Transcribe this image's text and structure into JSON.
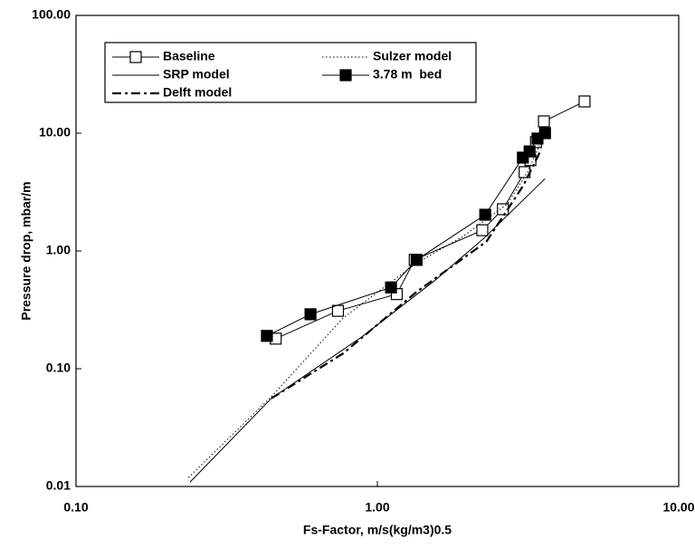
{
  "chart_data": {
    "type": "line",
    "x_label": "Fs-Factor, m/s(kg/m3)0.5",
    "y_label": "Pressure drop, mbar/m",
    "xscale": "log",
    "yscale": "log",
    "xlim": [
      0.1,
      10
    ],
    "ylim": [
      0.01,
      100
    ],
    "xticks": [
      {
        "value": 0.1,
        "label": "0.10"
      },
      {
        "value": 1,
        "label": "1.00"
      },
      {
        "value": 10,
        "label": "10.00"
      }
    ],
    "yticks": [
      {
        "value": 0.01,
        "label": "0.01"
      },
      {
        "value": 0.1,
        "label": "0.10"
      },
      {
        "value": 1,
        "label": "1.00"
      },
      {
        "value": 10,
        "label": "10.00"
      },
      {
        "value": 100,
        "label": "100.00"
      }
    ],
    "legend": "top-left",
    "series": [
      {
        "name": "Baseline",
        "color": "#000000",
        "line": "solid",
        "marker": "square-open",
        "x": [
          0.46,
          0.74,
          1.16,
          1.33,
          2.23,
          2.61,
          3.08,
          3.22,
          3.36,
          3.57,
          4.87
        ],
        "values": [
          0.18,
          0.31,
          0.43,
          0.84,
          1.5,
          2.26,
          4.67,
          5.9,
          8.4,
          12.6,
          18.6
        ]
      },
      {
        "name": "Sulzer model",
        "color": "#000000",
        "line": "dotted",
        "marker": "none",
        "x": [
          0.236,
          0.445,
          0.77,
          1.35,
          1.9,
          2.7,
          3.15,
          3.45
        ],
        "values": [
          0.0119,
          0.058,
          0.27,
          0.79,
          1.3,
          2.5,
          4.67,
          7.9
        ]
      },
      {
        "name": "SRP model",
        "color": "#000000",
        "line": "solid",
        "marker": "none",
        "x": [
          0.239,
          0.445,
          0.89,
          1.55,
          2.27,
          3.6
        ],
        "values": [
          0.0109,
          0.056,
          0.187,
          0.56,
          1.3,
          4.1
        ]
      },
      {
        "name": "3.78 m  bed",
        "color": "#000000",
        "line": "solid",
        "marker": "square-filled",
        "x": [
          0.43,
          0.6,
          1.11,
          1.35,
          2.28,
          3.04,
          3.2,
          3.4,
          3.6
        ],
        "values": [
          0.19,
          0.29,
          0.49,
          0.84,
          2.03,
          6.2,
          7.0,
          9.0,
          10.0
        ]
      },
      {
        "name": "Delft model",
        "color": "#000000",
        "line": "dashdot",
        "marker": "none",
        "x": [
          0.445,
          0.77,
          1.35,
          2.3,
          3.05,
          3.5
        ],
        "values": [
          0.056,
          0.135,
          0.45,
          1.2,
          3.6,
          7.3
        ]
      }
    ]
  }
}
